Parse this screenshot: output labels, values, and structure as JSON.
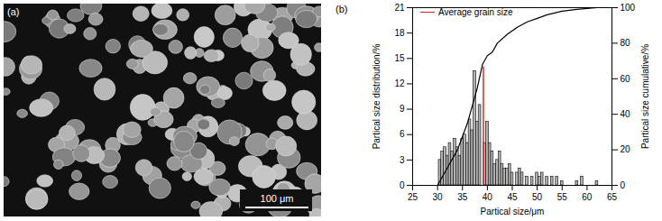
{
  "chart_data": {
    "type": "bar",
    "panel_label": "(b)",
    "xlabel": "Partical size/μm",
    "ylabel": "Partical size distribution/%",
    "y2label": "Partical size cumulative/%",
    "x": [
      30.5,
      31,
      31.5,
      32,
      32.5,
      33,
      33.5,
      34,
      34.5,
      35,
      35.5,
      36,
      36.5,
      37,
      37.5,
      38,
      38.5,
      39.5,
      40,
      40.5,
      41,
      41.5,
      42,
      42.5,
      43,
      43.5,
      44,
      44.5,
      45,
      46,
      46.5,
      47,
      48,
      49,
      50,
      50.5,
      51,
      52,
      53,
      54,
      55,
      58,
      59,
      62
    ],
    "values": [
      3,
      4,
      4.5,
      3.5,
      5,
      4,
      5.5,
      4.5,
      3.5,
      5.5,
      6,
      5,
      7.8,
      6.5,
      13.5,
      7.5,
      9.5,
      5,
      7.5,
      5,
      4,
      2.5,
      3,
      4,
      2.5,
      2,
      2,
      2.5,
      1.5,
      1.5,
      2,
      1.5,
      1,
      1,
      1.5,
      1,
      1.5,
      1,
      1,
      1,
      0.5,
      0.5,
      1,
      0.5
    ],
    "color": "#b4b4b4",
    "series": [
      {
        "type": "line",
        "axis": "y2",
        "color": "#000000",
        "x": [
          30,
          32,
          34,
          36,
          38,
          39,
          40,
          41,
          42,
          44,
          46,
          48,
          50,
          52,
          55,
          58,
          62
        ],
        "values": [
          0,
          10,
          20,
          35,
          55,
          68,
          73,
          75,
          80,
          85,
          89,
          92,
          94,
          96,
          98,
          99,
          100
        ]
      },
      {
        "name": "Average grain size",
        "type": "line",
        "color": "#e8222a",
        "x": [
          39.2,
          39.2
        ],
        "values": [
          0,
          14
        ]
      }
    ],
    "legend": "upper left",
    "xlim": [
      25,
      65
    ],
    "xticks": [
      25,
      30,
      35,
      40,
      45,
      50,
      55,
      60,
      65
    ],
    "ylim": [
      0,
      21
    ],
    "yticks": [
      0,
      3,
      6,
      9,
      12,
      15,
      18,
      21
    ],
    "y2lim": [
      0,
      100
    ],
    "y2ticks": [
      0,
      20,
      40,
      60,
      80,
      100
    ]
  },
  "image": {
    "panel_label": "(a)",
    "scale_bar": "100 μm"
  }
}
